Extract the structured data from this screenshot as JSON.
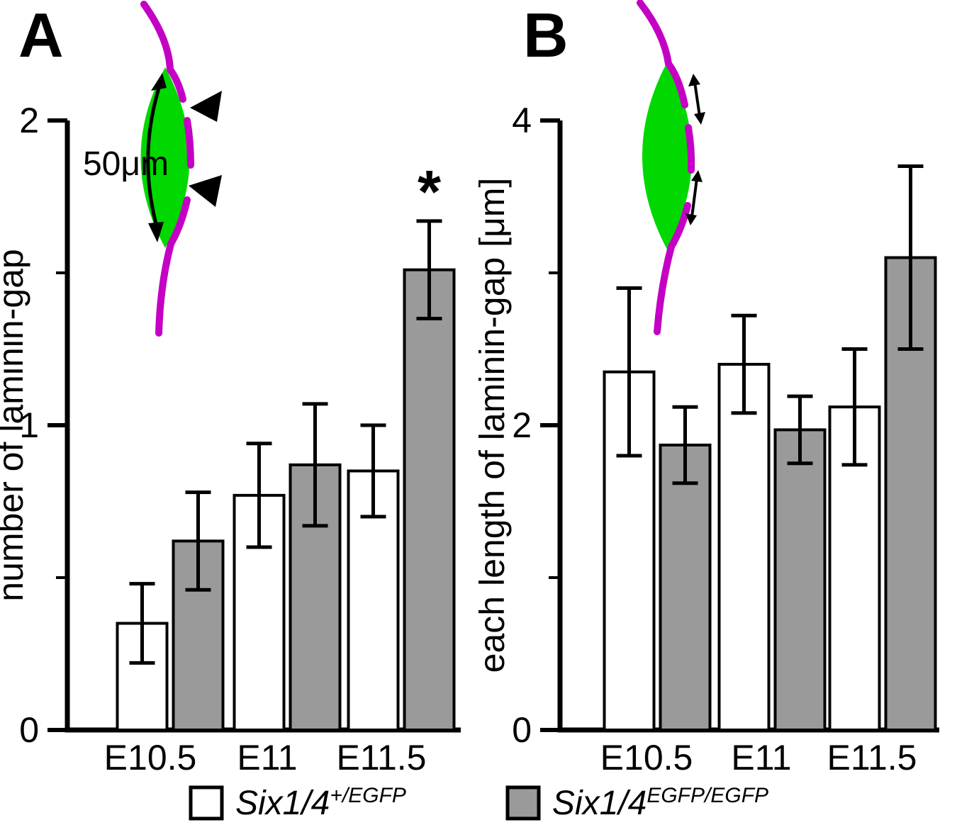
{
  "panels": [
    {
      "letter": "A",
      "inset_label": "50μm"
    },
    {
      "letter": "B"
    }
  ],
  "colors": {
    "lens_green": "#00d800",
    "laminin_magenta": "#c400c4",
    "bar_gray": "#9a9a9a",
    "bar_white": "#ffffff",
    "axis_black": "#000000"
  },
  "legend": {
    "items": [
      {
        "swatch_color": "#ffffff",
        "base": "Six1/4",
        "sup": "+/EGFP"
      },
      {
        "swatch_color": "#9a9a9a",
        "base": "Six1/4",
        "sup": "EGFP/EGFP"
      }
    ]
  },
  "chart_data": [
    {
      "type": "bar",
      "panel": "A",
      "ylabel": "number of laminin-gap",
      "xlabel": "",
      "categories": [
        "E10.5",
        "E11",
        "E11.5"
      ],
      "series": [
        {
          "name": "Six1/4+/EGFP",
          "fill": "#ffffff",
          "values": [
            0.35,
            0.77,
            0.85
          ],
          "errors": [
            0.13,
            0.17,
            0.15
          ]
        },
        {
          "name": "Six1/4EGFP/EGFP",
          "fill": "#9a9a9a",
          "values": [
            0.62,
            0.87,
            1.51
          ],
          "errors": [
            0.16,
            0.2,
            0.16
          ]
        }
      ],
      "ylim": [
        0,
        2
      ],
      "yticks_major": [
        0,
        1,
        2
      ],
      "yticks_minor": [
        0.5,
        1.5
      ],
      "grid": false,
      "annotations": [
        {
          "text": "*",
          "category": "E11.5",
          "series": 1,
          "meaning": "significant"
        }
      ]
    },
    {
      "type": "bar",
      "panel": "B",
      "ylabel": "each length of laminin-gap [μm]",
      "xlabel": "",
      "categories": [
        "E10.5",
        "E11",
        "E11.5"
      ],
      "series": [
        {
          "name": "Six1/4+/EGFP",
          "fill": "#ffffff",
          "values": [
            2.35,
            2.4,
            2.12
          ],
          "errors": [
            0.55,
            0.32,
            0.38
          ]
        },
        {
          "name": "Six1/4EGFP/EGFP",
          "fill": "#9a9a9a",
          "values": [
            1.87,
            1.97,
            3.1
          ],
          "errors": [
            0.25,
            0.22,
            0.6
          ]
        }
      ],
      "ylim": [
        0,
        4
      ],
      "yticks_major": [
        0,
        2,
        4
      ],
      "yticks_minor": [
        1,
        3
      ],
      "grid": false,
      "annotations": []
    }
  ]
}
